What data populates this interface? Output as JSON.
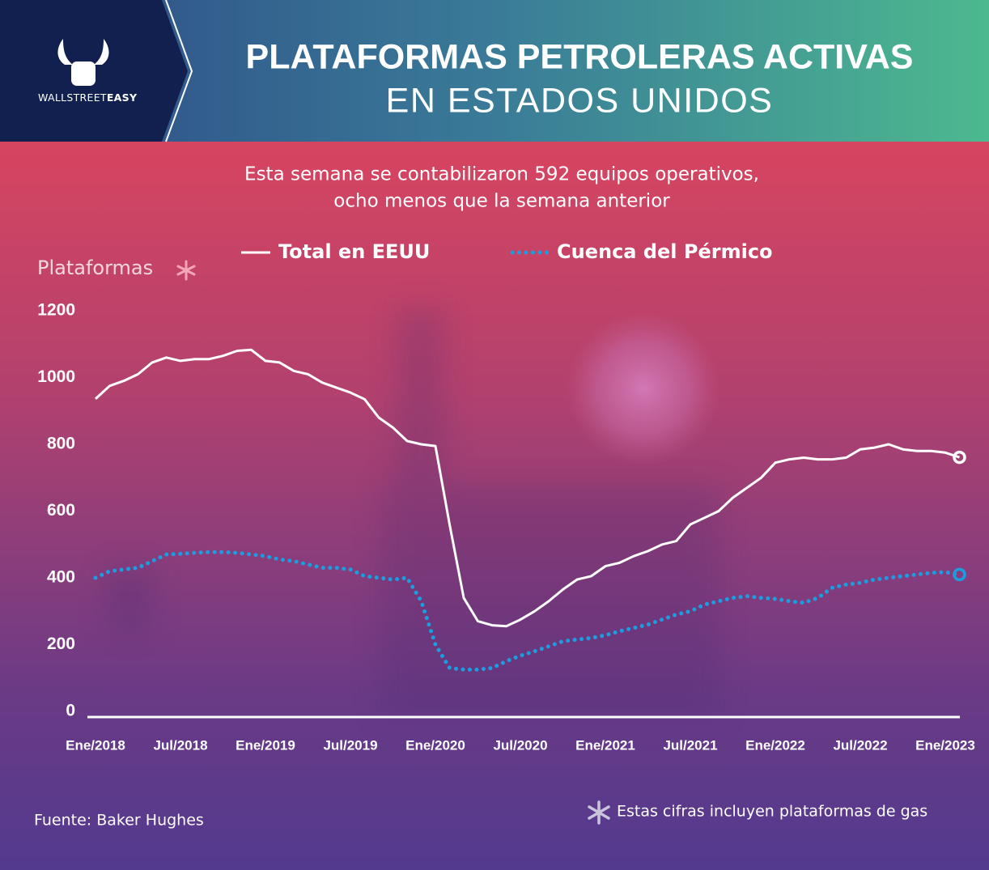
{
  "logo": {
    "text": "WALLSTREET",
    "bold_text": "EASY"
  },
  "chart_data": {
    "type": "line",
    "title": [
      "PLATAFORMAS PETROLERAS ACTIVAS",
      "EN ESTADOS UNIDOS"
    ],
    "subtitle": [
      "Esta semana se contabilizaron 592 equipos operativos,",
      "ocho menos que la semana anterior"
    ],
    "ylabel": "Plataformas",
    "categories": [
      "Ene/2018",
      null,
      null,
      null,
      null,
      null,
      "Jul/2018",
      null,
      null,
      null,
      null,
      null,
      "Ene/2019",
      null,
      null,
      null,
      null,
      null,
      "Jul/2019",
      null,
      null,
      null,
      null,
      null,
      "Ene/2020",
      null,
      null,
      null,
      null,
      null,
      "Jul/2020",
      null,
      null,
      null,
      null,
      null,
      "Ene/2021",
      null,
      null,
      null,
      null,
      null,
      "Jul/2021",
      null,
      null,
      null,
      null,
      null,
      "Ene/2022",
      null,
      null,
      null,
      null,
      null,
      "Jul/2022",
      null,
      null,
      null,
      null,
      null,
      "Ene/2023",
      null
    ],
    "series": [
      {
        "name": "Total en EEUU",
        "color": "#ffffff",
        "line_style": "solid",
        "values": [
          936,
          975,
          990,
          1010,
          1045,
          1060,
          1050,
          1055,
          1055,
          1065,
          1080,
          1083,
          1050,
          1045,
          1020,
          1010,
          985,
          970,
          955,
          935,
          880,
          850,
          810,
          800,
          795,
          560,
          340,
          270,
          258,
          255,
          275,
          300,
          330,
          365,
          395,
          405,
          435,
          445,
          465,
          480,
          500,
          510,
          560,
          580,
          600,
          640,
          670,
          700,
          745,
          755,
          760,
          755,
          755,
          760,
          785,
          790,
          800,
          785,
          780,
          780,
          775,
          761
        ]
      },
      {
        "name": "Cuenca del Pérmico",
        "color": "#1a9ee0",
        "line_style": "dotted",
        "values": [
          400,
          420,
          425,
          430,
          450,
          470,
          472,
          475,
          477,
          477,
          475,
          470,
          465,
          455,
          450,
          440,
          430,
          430,
          425,
          405,
          400,
          395,
          400,
          330,
          200,
          130,
          125,
          125,
          130,
          150,
          167,
          180,
          195,
          210,
          215,
          220,
          228,
          240,
          250,
          260,
          275,
          290,
          300,
          320,
          330,
          340,
          345,
          340,
          337,
          330,
          325,
          340,
          370,
          380,
          385,
          395,
          400,
          405,
          410,
          415,
          417,
          410
        ]
      }
    ],
    "ylim": [
      0,
      1200
    ],
    "yticks": [
      0,
      200,
      400,
      600,
      800,
      1000,
      1200
    ],
    "grid": false,
    "source": "Fuente: Baker Hughes",
    "note": "Estas cifras incluyen plataformas de gas"
  }
}
